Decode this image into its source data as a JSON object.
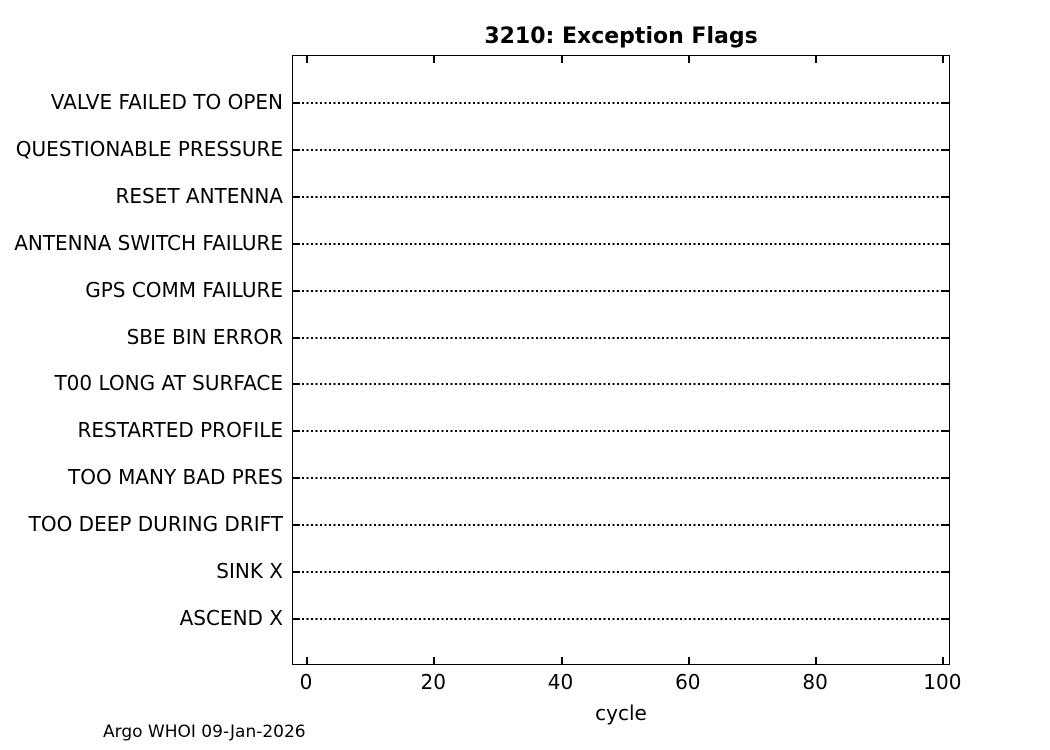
{
  "figure": {
    "background": "#ffffff",
    "axis_color": "#000000",
    "text_color": "#000000"
  },
  "chart_data": {
    "type": "scatter",
    "title": "3210: Exception Flags",
    "xlabel": "cycle",
    "ylabel": "",
    "xlim": [
      -2.2,
      101.2
    ],
    "xticks": [
      0,
      20,
      40,
      60,
      80,
      100
    ],
    "xtick_labels": [
      "0",
      "20",
      "40",
      "60",
      "80",
      "100"
    ],
    "y_categories": [
      "VALVE FAILED TO OPEN",
      "QUESTIONABLE PRESSURE",
      "RESET ANTENNA",
      "ANTENNA SWITCH FAILURE",
      "GPS COMM FAILURE",
      "SBE BIN ERROR",
      "T00 LONG AT SURFACE",
      "RESTARTED PROFILE",
      "TOO MANY BAD PRES",
      "TOO DEEP DURING DRIFT",
      "SINK X",
      "ASCEND X"
    ],
    "series": [],
    "points": [],
    "grid": "dotted-horizontal-per-category",
    "grid_line_style": "k:",
    "legend_position": "none",
    "box": true,
    "tick_direction": "in"
  },
  "footer": {
    "credit": "Argo WHOI 09-Jan-2026"
  }
}
